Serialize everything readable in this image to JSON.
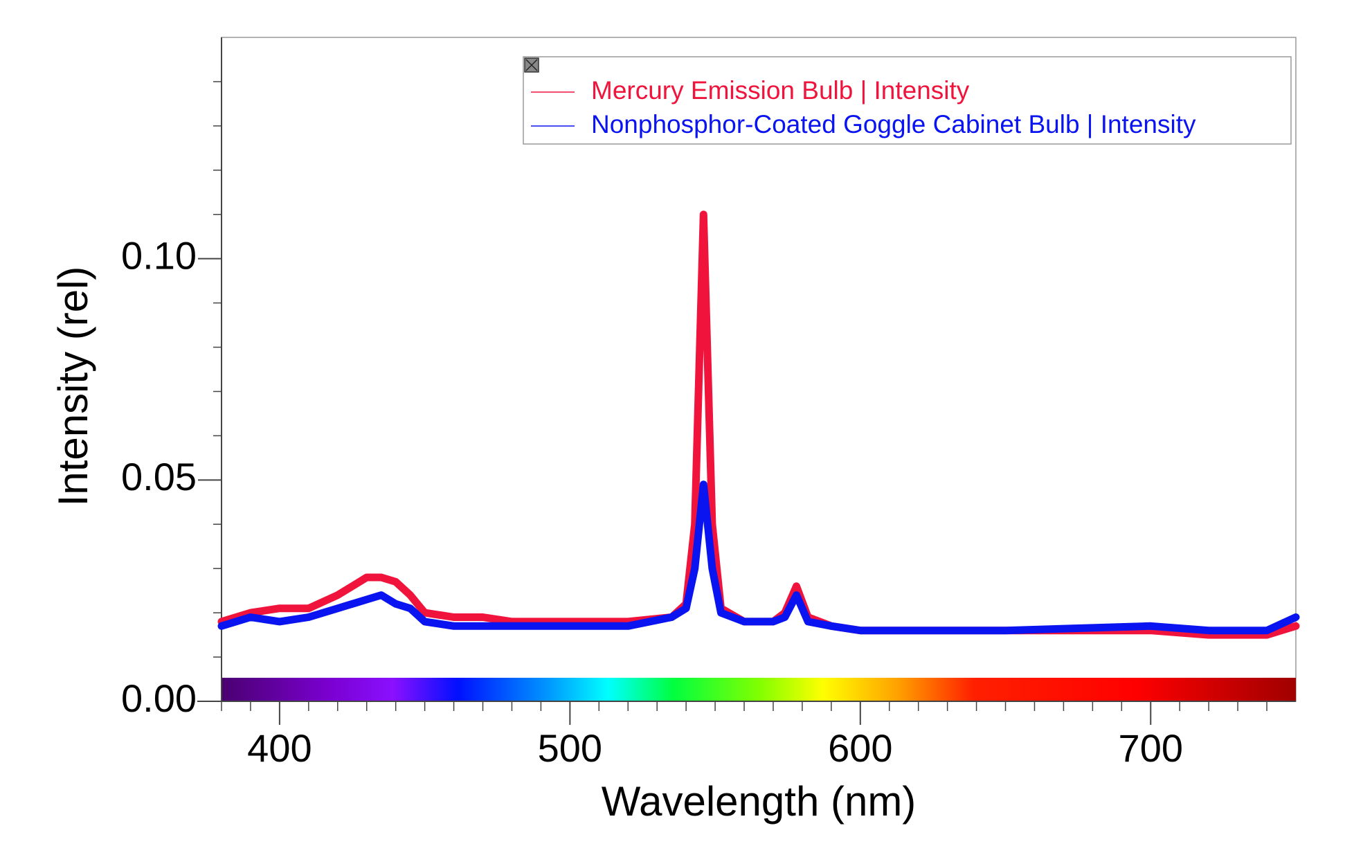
{
  "chart_data": {
    "type": "line",
    "x_label": "Wavelength (nm)",
    "y_label": "Intensity (rel)",
    "x": [
      380,
      390,
      400,
      410,
      420,
      430,
      435,
      440,
      445,
      450,
      460,
      470,
      480,
      500,
      520,
      535,
      540,
      543,
      546,
      549,
      552,
      560,
      570,
      574,
      578,
      582,
      590,
      600,
      620,
      650,
      700,
      720,
      740,
      750
    ],
    "series": [
      {
        "name": "Mercury Emission Bulb | Intensity",
        "color": "#f0143c",
        "values": [
          0.018,
          0.02,
          0.021,
          0.021,
          0.024,
          0.028,
          0.028,
          0.027,
          0.024,
          0.02,
          0.019,
          0.019,
          0.018,
          0.018,
          0.018,
          0.019,
          0.022,
          0.04,
          0.11,
          0.04,
          0.021,
          0.018,
          0.018,
          0.02,
          0.026,
          0.019,
          0.017,
          0.016,
          0.016,
          0.016,
          0.016,
          0.015,
          0.015,
          0.017
        ]
      },
      {
        "name": "Nonphosphor-Coated Goggle Cabinet Bulb | Intensity",
        "color": "#0a14f0",
        "values": [
          0.017,
          0.019,
          0.018,
          0.019,
          0.021,
          0.023,
          0.024,
          0.022,
          0.021,
          0.018,
          0.017,
          0.017,
          0.017,
          0.017,
          0.017,
          0.019,
          0.021,
          0.03,
          0.049,
          0.03,
          0.02,
          0.018,
          0.018,
          0.019,
          0.024,
          0.018,
          0.017,
          0.016,
          0.016,
          0.016,
          0.017,
          0.016,
          0.016,
          0.019
        ]
      }
    ],
    "xlim": [
      380,
      750
    ],
    "ylim": [
      0,
      0.15
    ],
    "xticks": [
      400,
      500,
      600,
      700
    ],
    "yticks": [
      {
        "value": 0,
        "label": "0.00"
      },
      {
        "value": 0.05,
        "label": "0.05"
      },
      {
        "value": 0.1,
        "label": "0.10"
      }
    ],
    "x_minor_ticks": [
      380,
      390,
      410,
      420,
      430,
      440,
      450,
      460,
      470,
      480,
      490,
      510,
      520,
      530,
      540,
      550,
      560,
      570,
      580,
      590,
      610,
      620,
      630,
      640,
      650,
      660,
      670,
      680,
      690,
      710,
      720,
      730,
      740
    ],
    "y_minor_ticks": [
      0.01,
      0.02,
      0.03,
      0.04,
      0.06,
      0.07,
      0.08,
      0.09,
      0.11,
      0.12,
      0.13,
      0.14
    ],
    "legend": "top-right",
    "grid": false
  }
}
